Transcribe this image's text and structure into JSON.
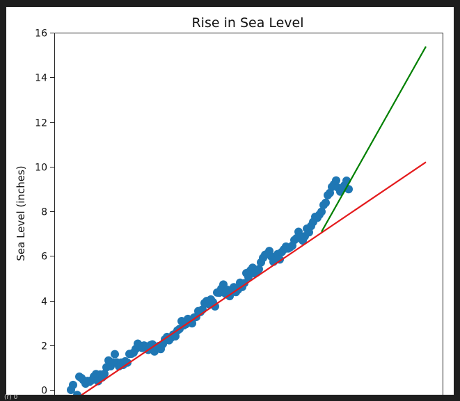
{
  "footer": {
    "label": "(r) 0"
  },
  "chart_data": {
    "type": "scatter",
    "title": "Rise in Sea Level",
    "xlabel": "",
    "ylabel": "Sea Level (inches)",
    "grid": false,
    "ylim": [
      0,
      16
    ],
    "xlim": [
      1872,
      2058
    ],
    "yticks": [
      0,
      2,
      4,
      6,
      8,
      10,
      12,
      14,
      16
    ],
    "ytick_labels": [
      "0",
      "2",
      "4",
      "6",
      "8",
      "10",
      "12",
      "14",
      "16"
    ],
    "series": [
      {
        "kind": "scatter",
        "color": "#1f77b4",
        "x": [
          1880,
          1881,
          1882,
          1883,
          1884,
          1885,
          1886,
          1887,
          1888,
          1889,
          1890,
          1891,
          1892,
          1893,
          1894,
          1895,
          1896,
          1897,
          1898,
          1899,
          1900,
          1901,
          1902,
          1903,
          1904,
          1905,
          1906,
          1907,
          1908,
          1909,
          1910,
          1911,
          1912,
          1913,
          1914,
          1915,
          1916,
          1917,
          1918,
          1919,
          1920,
          1921,
          1922,
          1923,
          1924,
          1925,
          1926,
          1927,
          1928,
          1929,
          1930,
          1931,
          1932,
          1933,
          1934,
          1935,
          1936,
          1937,
          1938,
          1939,
          1940,
          1941,
          1942,
          1943,
          1944,
          1945,
          1946,
          1947,
          1948,
          1949,
          1950,
          1951,
          1952,
          1953,
          1954,
          1955,
          1956,
          1957,
          1958,
          1959,
          1960,
          1961,
          1962,
          1963,
          1964,
          1965,
          1966,
          1967,
          1968,
          1969,
          1970,
          1971,
          1972,
          1973,
          1974,
          1975,
          1976,
          1977,
          1978,
          1979,
          1980,
          1981,
          1982,
          1983,
          1984,
          1985,
          1986,
          1987,
          1988,
          1989,
          1990,
          1991,
          1992,
          1993,
          1994,
          1995,
          1996,
          1997,
          1998,
          1999,
          2000,
          2001,
          2002,
          2003,
          2004,
          2005,
          2006,
          2007,
          2008,
          2009,
          2010,
          2011,
          2012,
          2013
        ],
        "y": [
          0.0,
          0.22,
          -0.44,
          -0.23,
          0.59,
          0.53,
          0.43,
          0.28,
          0.4,
          0.37,
          0.44,
          0.6,
          0.71,
          0.39,
          0.69,
          0.56,
          0.72,
          1.01,
          1.32,
          1.06,
          1.23,
          1.6,
          1.23,
          1.06,
          1.22,
          1.12,
          1.28,
          1.22,
          1.61,
          1.62,
          1.67,
          1.83,
          2.07,
          1.98,
          1.88,
          1.99,
          1.92,
          1.79,
          2.0,
          2.04,
          1.72,
          1.9,
          1.96,
          1.83,
          2.05,
          2.26,
          2.37,
          2.22,
          2.34,
          2.48,
          2.4,
          2.66,
          2.73,
          3.08,
          2.89,
          2.94,
          3.18,
          3.03,
          2.98,
          3.24,
          3.27,
          3.53,
          3.49,
          3.6,
          3.89,
          3.98,
          3.84,
          4.05,
          3.93,
          3.74,
          4.36,
          4.35,
          4.53,
          4.72,
          4.31,
          4.48,
          4.2,
          4.37,
          4.6,
          4.38,
          4.49,
          4.8,
          4.61,
          4.78,
          5.23,
          5.06,
          5.35,
          5.47,
          5.22,
          5.26,
          5.41,
          5.71,
          5.91,
          6.05,
          6.09,
          6.22,
          5.97,
          5.74,
          5.88,
          6.08,
          5.84,
          6.18,
          6.29,
          6.42,
          6.33,
          6.39,
          6.46,
          6.71,
          6.79,
          7.08,
          6.86,
          6.69,
          6.88,
          7.22,
          7.06,
          7.34,
          7.52,
          7.75,
          7.71,
          7.85,
          7.98,
          8.28,
          8.38,
          8.72,
          8.82,
          9.09,
          9.21,
          9.38,
          9.05,
          8.88,
          9.01,
          9.16,
          9.37,
          8.99
        ]
      },
      {
        "kind": "line",
        "color": "#e41a1c",
        "x": [
          1880,
          2050
        ],
        "y": [
          -0.55,
          10.2
        ]
      },
      {
        "kind": "line",
        "color": "#008000",
        "x": [
          2000,
          2050
        ],
        "y": [
          7.08,
          15.38
        ]
      }
    ]
  }
}
